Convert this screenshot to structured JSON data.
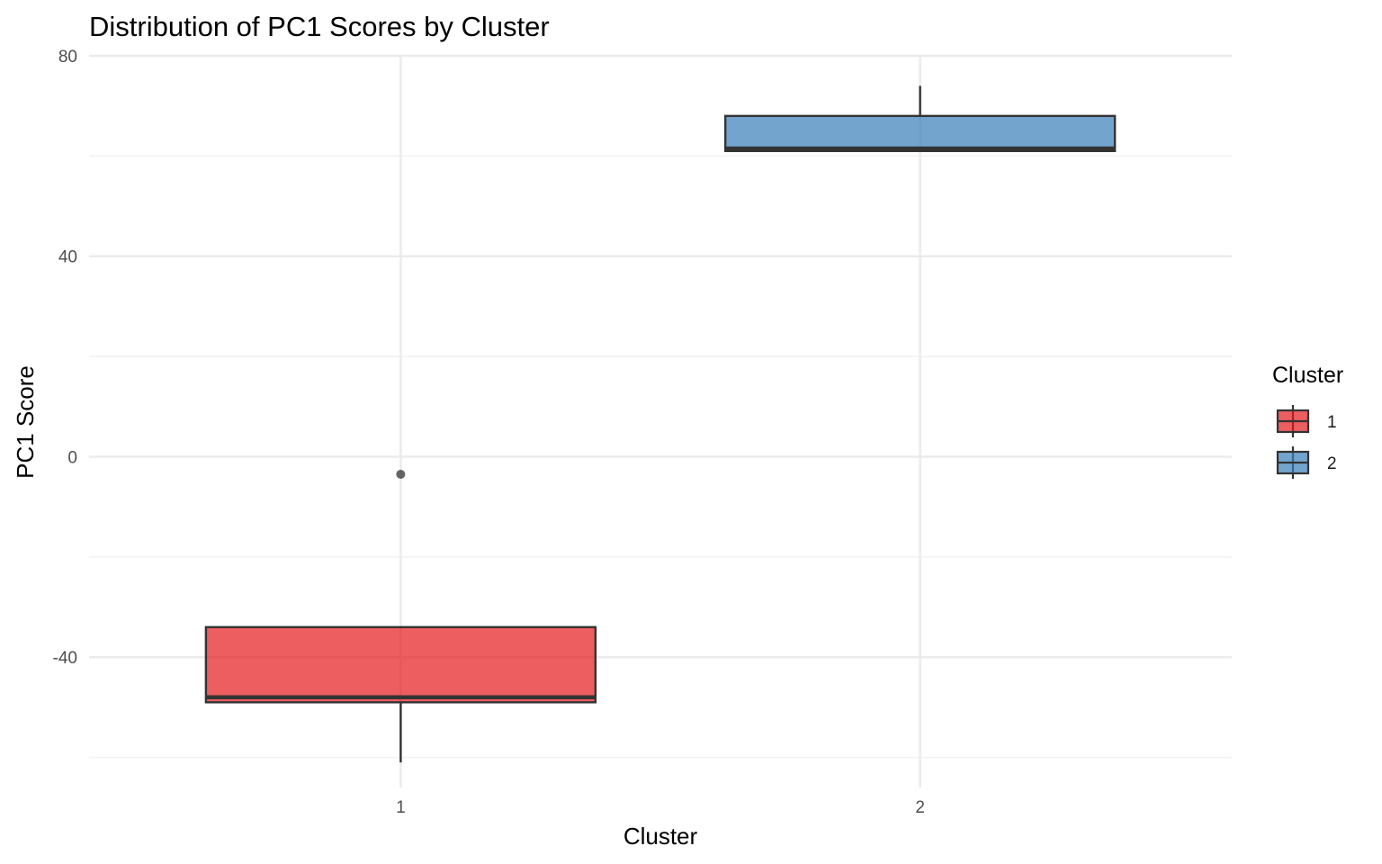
{
  "chart_data": {
    "type": "boxplot",
    "title": "Distribution of PC1 Scores by Cluster",
    "xlabel": "Cluster",
    "ylabel": "PC1 Score",
    "categories": [
      "1",
      "2"
    ],
    "ylim": [
      -66,
      80
    ],
    "yticks": [
      -40,
      0,
      40,
      80
    ],
    "grid": true,
    "legend": {
      "title": "Cluster",
      "position": "right",
      "entries": [
        "1",
        "2"
      ]
    },
    "colors": {
      "1": "#e41a1c",
      "2": "#377eb8",
      "box_stroke": "#333333",
      "grid_major": "#ebebeb",
      "grid_minor": "#f2f2f2"
    },
    "series": [
      {
        "name": "1",
        "min": -61,
        "q1": -49,
        "median": -48,
        "q3": -34,
        "max": -34,
        "outliers": [
          -3.5
        ]
      },
      {
        "name": "2",
        "min": 61,
        "q1": 61,
        "median": 61.5,
        "q3": 68,
        "max": 74,
        "outliers": []
      }
    ]
  }
}
